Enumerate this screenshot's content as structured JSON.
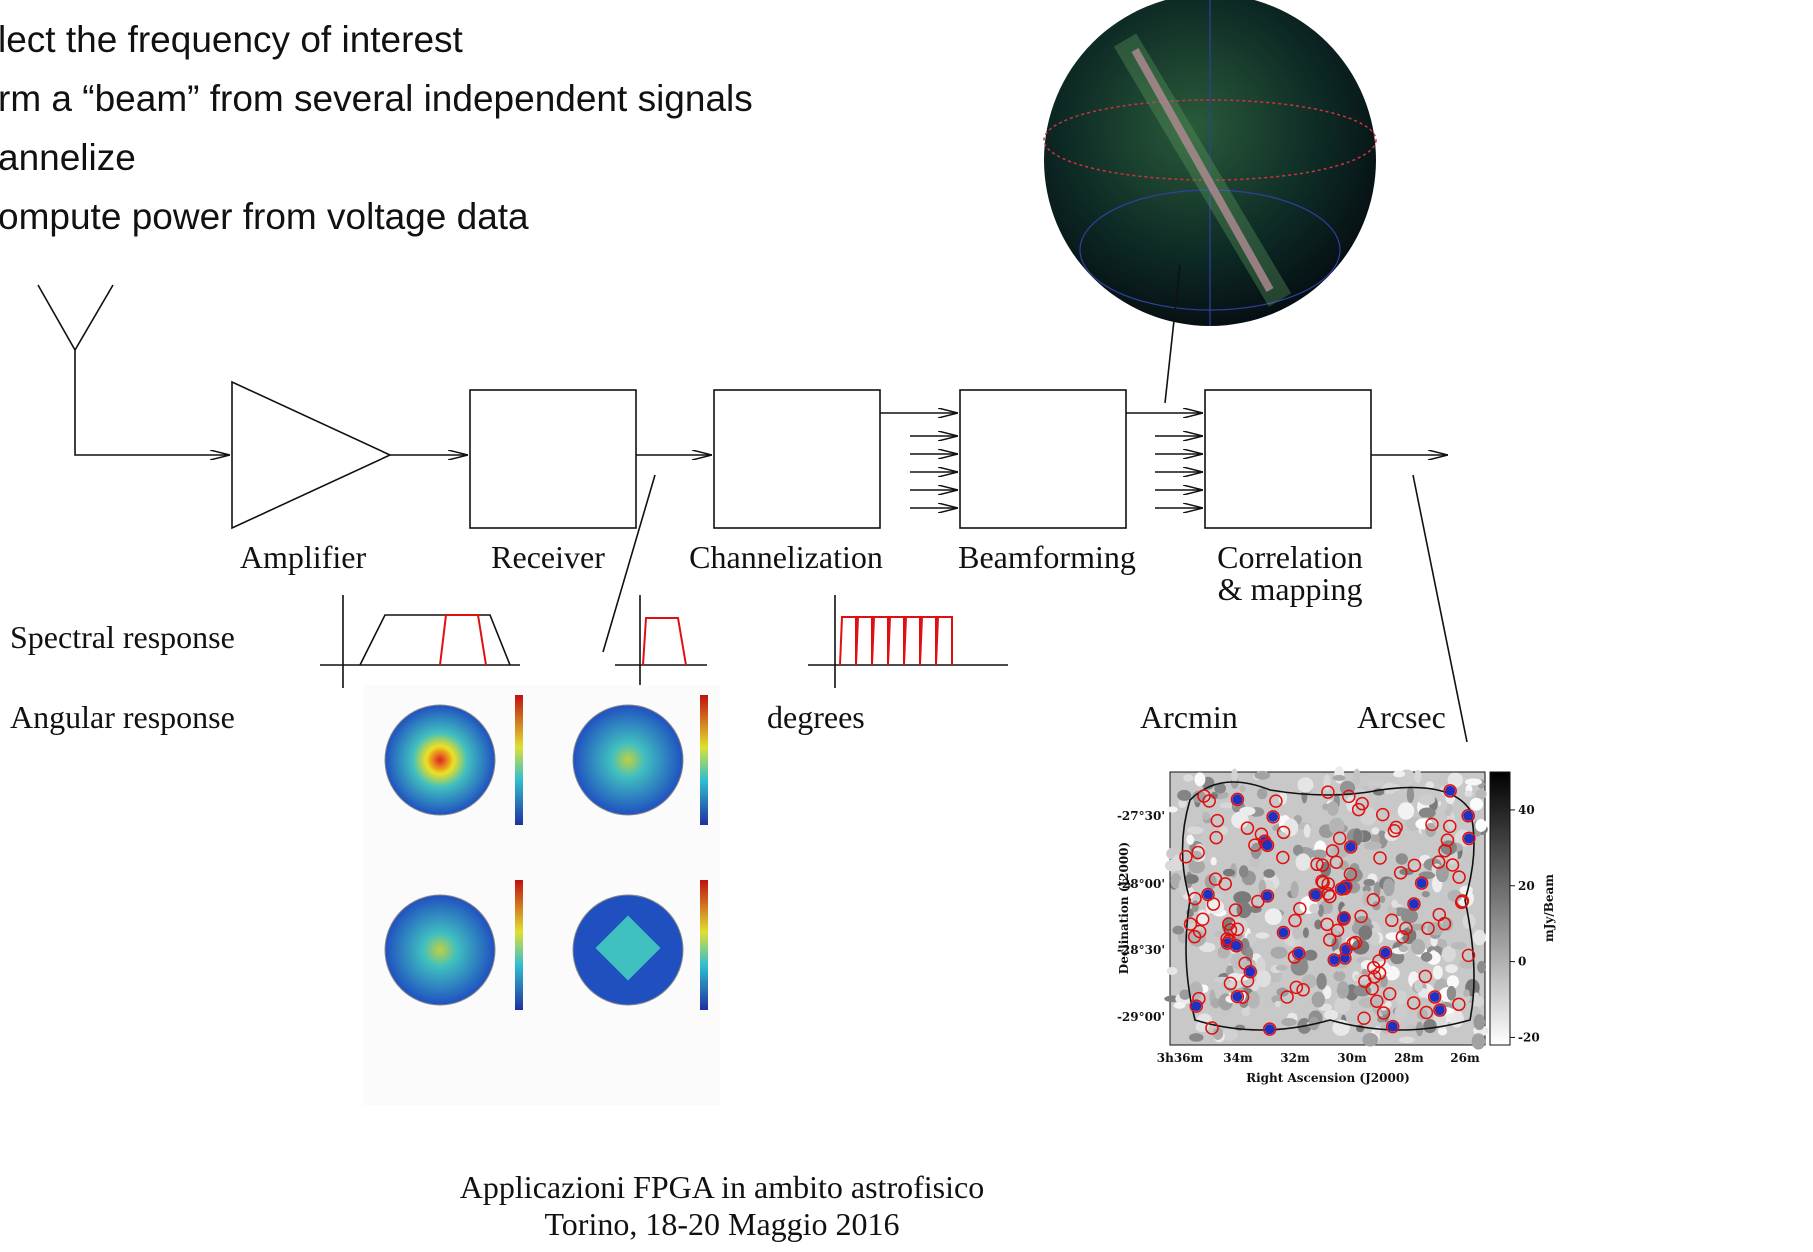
{
  "bullets": [
    "lect the frequency of interest",
    "rm a “beam” from several independent signals",
    "annelize",
    "ompute power from voltage data"
  ],
  "blocks": [
    {
      "lines": [
        "Amplifier"
      ]
    },
    {
      "lines": [
        "Receiver"
      ]
    },
    {
      "lines": [
        "Channelization"
      ]
    },
    {
      "lines": [
        "Beamforming"
      ]
    },
    {
      "lines": [
        "Correlation",
        "& mapping"
      ]
    }
  ],
  "rows": [
    "Spectral response",
    "Angular response"
  ],
  "resolutions": [
    "degrees",
    "Arcmin",
    "Arcsec"
  ],
  "map": {
    "y_label": "Declination (J2000)",
    "x_label": "Right Ascension (J2000)",
    "colorbar_label": "mJy/Beam",
    "y_ticks": [
      "-27°30'",
      "-28°00'",
      "-28°30'",
      "-29°00'"
    ],
    "x_ticks": [
      "3h36m",
      "34m",
      "32m",
      "30m",
      "28m",
      "26m"
    ],
    "colorbar_ticks": [
      40,
      20,
      0,
      -20
    ]
  },
  "footer": [
    "Applicazioni FPGA in ambito astrofisico",
    "Torino, 18-20 Maggio 2016"
  ]
}
